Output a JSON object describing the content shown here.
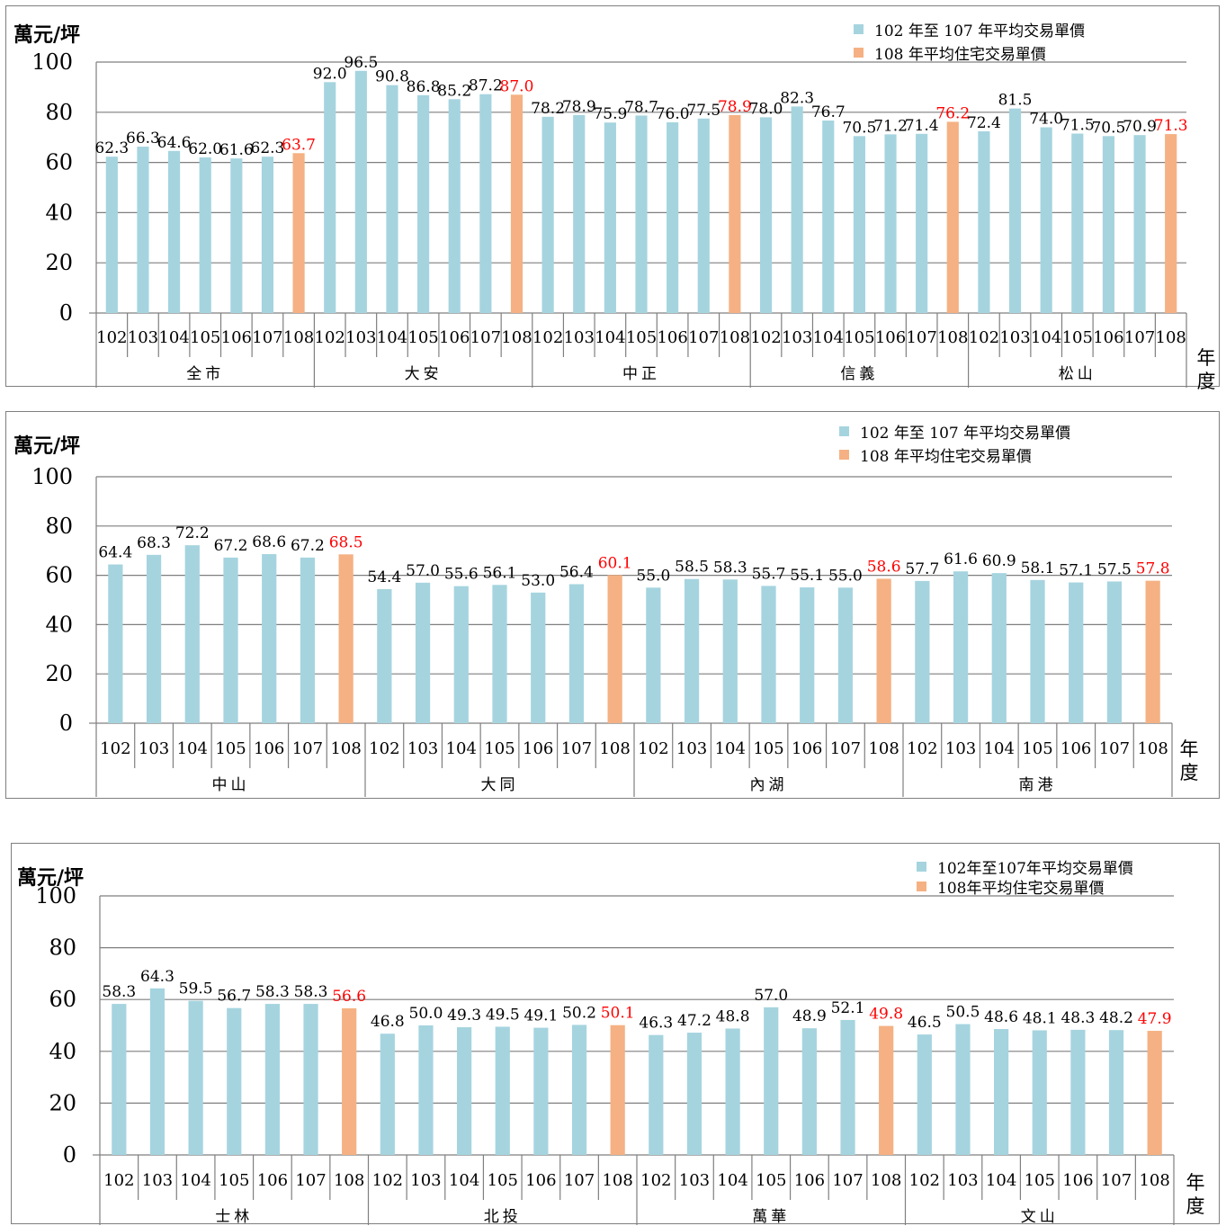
{
  "colors": {
    "prior": "#a5d4df",
    "current": "#f5b183",
    "current_label": "#ff0000",
    "grid": "#7f7f7f"
  },
  "chart_data": [
    {
      "type": "bar",
      "unit_label": "萬元/坪",
      "axis_title": [
        "年",
        "度"
      ],
      "legend": [
        "102 年至 107 年平均交易單價",
        "108 年平均住宅交易單價"
      ],
      "ylim": [
        0,
        100
      ],
      "yticks": [
        "0",
        "20",
        "40",
        "60",
        "80",
        "100"
      ],
      "years": [
        "102",
        "103",
        "104",
        "105",
        "106",
        "107",
        "108"
      ],
      "groups": [
        {
          "name": "全市",
          "values": [
            62.3,
            66.3,
            64.6,
            62.0,
            61.6,
            62.3,
            63.7
          ],
          "labels": [
            "62.3",
            "66.3",
            "64.6",
            "62.0",
            "61.6",
            "62.3",
            "63.7"
          ]
        },
        {
          "name": "大安",
          "values": [
            92.0,
            96.5,
            90.8,
            86.8,
            85.2,
            87.2,
            87.0
          ],
          "labels": [
            "92.0",
            "96.5",
            "90.8",
            "86.8",
            "85.2",
            "87.2",
            "87.0"
          ]
        },
        {
          "name": "中正",
          "values": [
            78.2,
            78.9,
            75.9,
            78.7,
            76.0,
            77.5,
            78.9
          ],
          "labels": [
            "78.2",
            "78.9",
            "75.9",
            "78.7",
            "76.0",
            "77.5",
            "78.9"
          ]
        },
        {
          "name": "信義",
          "values": [
            78.0,
            82.3,
            76.7,
            70.5,
            71.2,
            71.4,
            76.2
          ],
          "labels": [
            "78.0",
            "82.3",
            "76.7",
            "70.5",
            "71.2",
            "71.4",
            "76.2"
          ]
        },
        {
          "name": "松山",
          "values": [
            72.4,
            81.5,
            74.0,
            71.5,
            70.5,
            70.9,
            71.3
          ],
          "labels": [
            "72.4",
            "81.5",
            "74.0",
            "71.5",
            "70.5",
            "70.9",
            "71.3"
          ]
        }
      ]
    },
    {
      "type": "bar",
      "unit_label": "萬元/坪",
      "axis_title": [
        "年",
        "度"
      ],
      "legend": [
        "102 年至 107 年平均交易單價",
        "108 年平均住宅交易單價"
      ],
      "ylim": [
        0,
        100
      ],
      "yticks": [
        "0",
        "20",
        "40",
        "60",
        "80",
        "100"
      ],
      "years": [
        "102",
        "103",
        "104",
        "105",
        "106",
        "107",
        "108"
      ],
      "groups": [
        {
          "name": "中山",
          "values": [
            64.4,
            68.3,
            72.2,
            67.2,
            68.6,
            67.2,
            68.5
          ],
          "labels": [
            "64.4",
            "68.3",
            "72.2",
            "67.2",
            "68.6",
            "67.2",
            "68.5"
          ]
        },
        {
          "name": "大同",
          "values": [
            54.4,
            57.0,
            55.6,
            56.1,
            53.0,
            56.4,
            60.1
          ],
          "labels": [
            "54.4",
            "57.0",
            "55.6",
            "56.1",
            "53.0",
            "56.4",
            "60.1"
          ]
        },
        {
          "name": "內湖",
          "values": [
            55.0,
            58.5,
            58.3,
            55.7,
            55.1,
            55.0,
            58.6
          ],
          "labels": [
            "55.0",
            "58.5",
            "58.3",
            "55.7",
            "55.1",
            "55.0",
            "58.6"
          ]
        },
        {
          "name": "南港",
          "values": [
            57.7,
            61.6,
            60.9,
            58.1,
            57.1,
            57.5,
            57.8
          ],
          "labels": [
            "57.7",
            "61.6",
            "60.9",
            "58.1",
            "57.1",
            "57.5",
            "57.8"
          ]
        }
      ]
    },
    {
      "type": "bar",
      "unit_label": "萬元/坪",
      "axis_title": [
        "年",
        "度"
      ],
      "legend": [
        "102年至107年平均交易單價",
        "108年平均住宅交易單價"
      ],
      "ylim": [
        0,
        100
      ],
      "yticks": [
        "0",
        "20",
        "40",
        "60",
        "80",
        "100"
      ],
      "years": [
        "102",
        "103",
        "104",
        "105",
        "106",
        "107",
        "108"
      ],
      "groups": [
        {
          "name": "士林",
          "values": [
            58.3,
            64.3,
            59.5,
            56.7,
            58.3,
            58.3,
            56.6
          ],
          "labels": [
            "58.3",
            "64.3",
            "59.5",
            "56.7",
            "58.3",
            "58.3",
            "56.6"
          ]
        },
        {
          "name": "北投",
          "values": [
            46.8,
            50.0,
            49.3,
            49.5,
            49.1,
            50.2,
            50.1
          ],
          "labels": [
            "46.8",
            "50.0",
            "49.3",
            "49.5",
            "49.1",
            "50.2",
            "50.1"
          ]
        },
        {
          "name": "萬華",
          "values": [
            46.3,
            47.2,
            48.8,
            57.0,
            48.9,
            52.1,
            49.8
          ],
          "labels": [
            "46.3",
            "47.2",
            "48.8",
            "57.0",
            "48.9",
            "52.1",
            "49.8"
          ]
        },
        {
          "name": "文山",
          "values": [
            46.5,
            50.5,
            48.6,
            48.1,
            48.3,
            48.2,
            47.9
          ],
          "labels": [
            "46.5",
            "50.5",
            "48.6",
            "48.1",
            "48.3",
            "48.2",
            "47.9"
          ]
        }
      ]
    }
  ]
}
